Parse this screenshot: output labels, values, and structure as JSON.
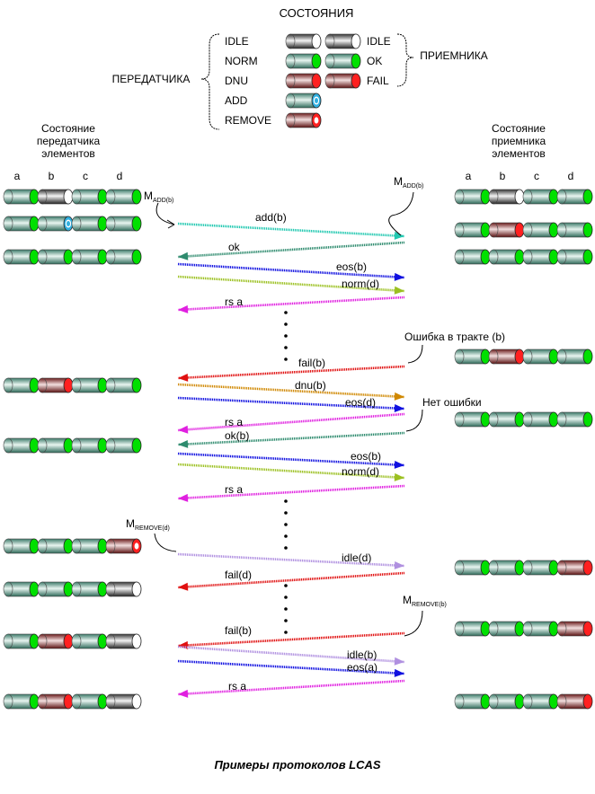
{
  "legend": {
    "title": "СОСТОЯНИЯ",
    "tx_group_label": "ПЕРЕДАТЧИКА",
    "rx_group_label": "ПРИЕМНИКА",
    "tx_states": [
      "IDLE",
      "NORM",
      "DNU",
      "ADD",
      "REMOVE"
    ],
    "rx_states": [
      "IDLE",
      "OK",
      "FAIL"
    ]
  },
  "tx_header": [
    "Состояние",
    "передатчика",
    "элементов"
  ],
  "rx_header": [
    "Состояние",
    "приемника",
    "элементов"
  ],
  "columns": [
    "a",
    "b",
    "c",
    "d"
  ],
  "colors": {
    "norm": "#00e000",
    "fail": "#ff2020",
    "add": "#30b0e0",
    "idle": "#ffffff",
    "cyl_norm": "#5f9f8f",
    "cyl_fail": "#8a3030",
    "cyl_idle": "#555555"
  },
  "tx_rows": [
    [
      "norm",
      "idle",
      "norm",
      "norm"
    ],
    [
      "norm",
      "add",
      "norm",
      "norm"
    ],
    [
      "norm",
      "norm",
      "norm",
      "norm"
    ],
    [
      "norm",
      "dnu",
      "norm",
      "norm"
    ],
    [
      "norm",
      "norm",
      "norm",
      "norm"
    ],
    [
      "norm",
      "norm",
      "norm",
      "remove"
    ],
    [
      "norm",
      "norm",
      "norm",
      "idle"
    ],
    [
      "norm",
      "dnu",
      "norm",
      "idle"
    ],
    [
      "norm",
      "dnu",
      "norm",
      "idle"
    ]
  ],
  "rx_rows": [
    [
      "ok",
      "idle",
      "ok",
      "ok"
    ],
    [
      "ok",
      "fail",
      "ok",
      "ok"
    ],
    [
      "ok",
      "ok",
      "ok",
      "ok"
    ],
    [
      "ok",
      "fail",
      "ok",
      "ok"
    ],
    [
      "ok",
      "ok",
      "ok",
      "ok"
    ],
    [
      "ok",
      "ok",
      "ok",
      "fail"
    ],
    [
      "ok",
      "ok",
      "ok",
      "fail"
    ],
    [
      "ok",
      "ok",
      "ok",
      "fail"
    ]
  ],
  "messages": [
    {
      "label": "add(b)",
      "dir": "right",
      "color": "#20c8b0"
    },
    {
      "label": "ok",
      "dir": "left",
      "color": "#2e8b6e"
    },
    {
      "label": "eos(b)",
      "dir": "right",
      "color": "#1010e0"
    },
    {
      "label": "norm(d)",
      "dir": "right",
      "color": "#9bc020"
    },
    {
      "label": "rs a",
      "dir": "left",
      "color": "#e020e0"
    },
    {
      "label": "fail(b)",
      "dir": "left",
      "color": "#e01010"
    },
    {
      "label": "dnu(b)",
      "dir": "right",
      "color": "#d08800"
    },
    {
      "label": "eos(d)",
      "dir": "right",
      "color": "#1010e0"
    },
    {
      "label": "rs a",
      "dir": "left",
      "color": "#e020e0"
    },
    {
      "label": "ok(b)",
      "dir": "left",
      "color": "#2e8b6e"
    },
    {
      "label": "eos(b)",
      "dir": "right",
      "color": "#1010e0"
    },
    {
      "label": "norm(d)",
      "dir": "right",
      "color": "#9bc020"
    },
    {
      "label": "rs a",
      "dir": "left",
      "color": "#e020e0"
    },
    {
      "label": "idle(d)",
      "dir": "right",
      "color": "#b090e0"
    },
    {
      "label": "fail(d)",
      "dir": "left",
      "color": "#e01010"
    },
    {
      "label": "fail(b)",
      "dir": "left",
      "color": "#e01010"
    },
    {
      "label": "idle(b)",
      "dir": "right",
      "color": "#b090e0"
    },
    {
      "label": "eos(a)",
      "dir": "right",
      "color": "#1010e0"
    },
    {
      "label": "rs a",
      "dir": "left",
      "color": "#e020e0"
    }
  ],
  "annotations": {
    "m_add_tx": {
      "main": "M",
      "sub": "ADD(b)"
    },
    "m_add_rx": {
      "main": "M",
      "sub": "ADD(b)"
    },
    "m_remove_tx": {
      "main": "M",
      "sub": "REMOVE(d)"
    },
    "m_remove_rx": {
      "main": "M",
      "sub": "REMOVE(b)"
    },
    "path_error": "Ошибка в тракте (b)",
    "no_error": "Нет ошибки"
  },
  "caption": "Примеры протоколов LCAS"
}
